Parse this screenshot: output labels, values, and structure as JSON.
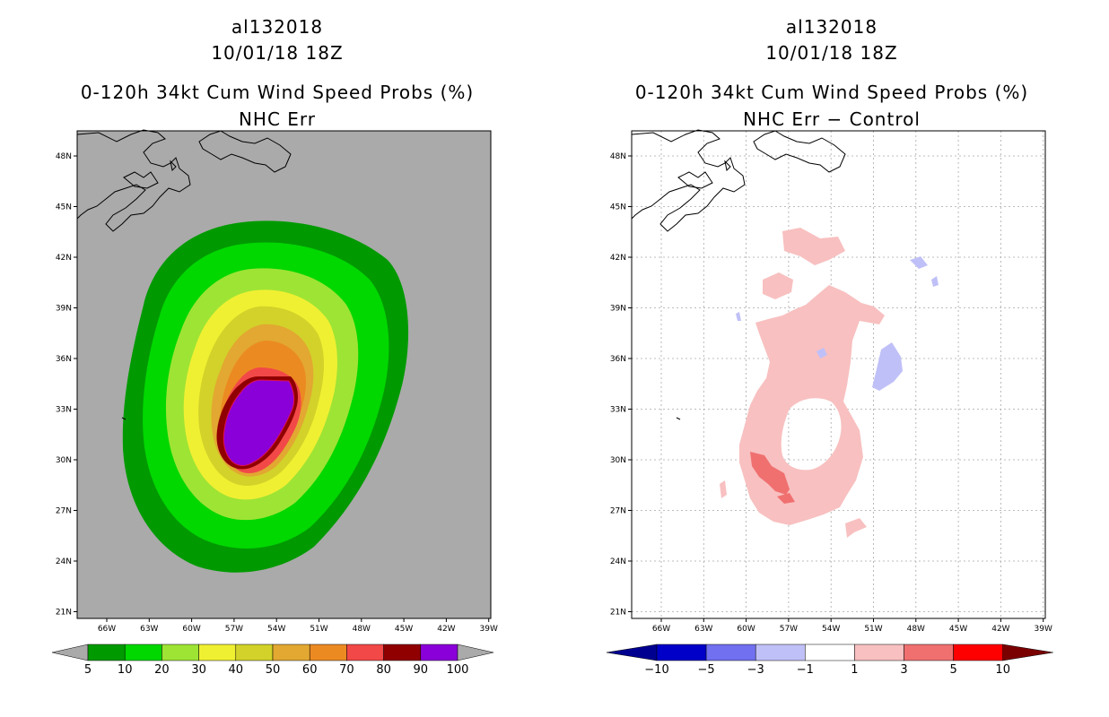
{
  "left": {
    "storm_id": "al132018",
    "datetime": "10/01/18 18Z",
    "title": "0-120h 34kt Cum Wind Speed Probs (%)",
    "subtitle": "NHC Err",
    "lat_labels": [
      "48N",
      "45N",
      "42N",
      "39N",
      "36N",
      "33N",
      "30N",
      "27N",
      "24N",
      "21N"
    ],
    "lon_labels": [
      "66W",
      "63W",
      "60W",
      "57W",
      "54W",
      "51W",
      "48W",
      "45W",
      "42W",
      "39W"
    ],
    "colorbar_labels": [
      "5",
      "10",
      "20",
      "30",
      "40",
      "50",
      "60",
      "70",
      "80",
      "90",
      "100"
    ],
    "colorbar_colors": [
      "#009a00",
      "#00d800",
      "#9ee434",
      "#f0f032",
      "#d2d22a",
      "#e2a831",
      "#ec8a22",
      "#f24848",
      "#900000",
      "#8a00d8"
    ],
    "background_color": "#aaaaaa"
  },
  "right": {
    "storm_id": "al132018",
    "datetime": "10/01/18 18Z",
    "title": "0-120h 34kt Cum Wind Speed Probs (%)",
    "subtitle": "NHC Err − Control",
    "lat_labels": [
      "48N",
      "45N",
      "42N",
      "39N",
      "36N",
      "33N",
      "30N",
      "27N",
      "24N",
      "21N"
    ],
    "lon_labels": [
      "66W",
      "63W",
      "60W",
      "57W",
      "54W",
      "51W",
      "48W",
      "45W",
      "42W",
      "39W"
    ],
    "colorbar_labels": [
      "−10",
      "−5",
      "−3",
      "−1",
      "1",
      "3",
      "5",
      "10"
    ],
    "colorbar_colors": [
      "#0000c8",
      "#7070f0",
      "#c0c0f8",
      "#ffffff",
      "#f8c0c0",
      "#f07070",
      "#ff0000"
    ],
    "colorbar_end_colors": [
      "#000090",
      "#7a0000"
    ]
  }
}
